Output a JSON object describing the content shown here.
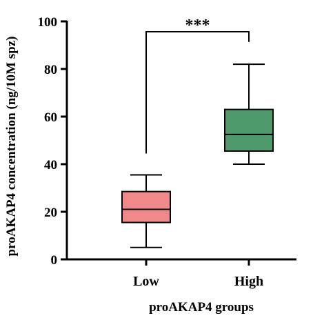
{
  "chart_data": {
    "type": "box",
    "xlabel": "proAKAP4 groups",
    "ylabel": "proAKAP4 concentration (ng/10M spz)",
    "ylim": [
      0,
      100
    ],
    "yticks": [
      0,
      20,
      40,
      60,
      80,
      100
    ],
    "categories": [
      "Low",
      "High"
    ],
    "boxes": [
      {
        "category": "Low",
        "min": 5,
        "q1": 15.5,
        "median": 21,
        "q3": 28.5,
        "max": 35.5,
        "color": "#f08a8a"
      },
      {
        "category": "High",
        "min": 40,
        "q1": 45.5,
        "median": 52.5,
        "q3": 63,
        "max": 82,
        "color": "#4f9a6c"
      }
    ],
    "significance": {
      "label": "***",
      "between": [
        "Low",
        "High"
      ],
      "bracket_left_bottom": 44.5,
      "bracket_right_bottom": 94,
      "bracket_top": 100
    },
    "grid": false
  }
}
